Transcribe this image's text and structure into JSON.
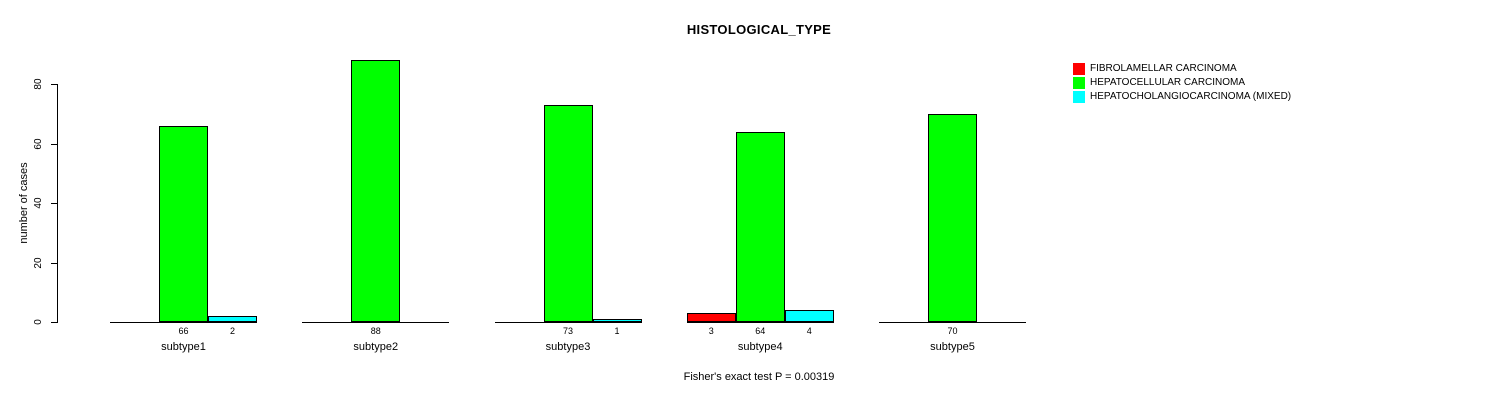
{
  "chart_data": {
    "type": "bar",
    "title": "HISTOLOGICAL_TYPE",
    "xlabel": "",
    "ylabel": "number of cases",
    "ylim": [
      0,
      80
    ],
    "yticks": [
      0,
      20,
      40,
      60,
      80
    ],
    "grid": false,
    "legend_position": "right",
    "categories": [
      "subtype1",
      "subtype2",
      "subtype3",
      "subtype4",
      "subtype5"
    ],
    "series": [
      {
        "name": "FIBROLAMELLAR CARCINOMA",
        "color": "#FF0000",
        "values": [
          null,
          null,
          null,
          3,
          null
        ]
      },
      {
        "name": "HEPATOCELLULAR CARCINOMA",
        "color": "#00FF00",
        "values": [
          66,
          88,
          73,
          64,
          70
        ]
      },
      {
        "name": "HEPATOCHOLANGIOCARCINOMA (MIXED)",
        "color": "#00FFFF",
        "values": [
          2,
          null,
          1,
          4,
          null
        ]
      }
    ],
    "annotation": "Fisher's exact test P = 0.00319"
  }
}
